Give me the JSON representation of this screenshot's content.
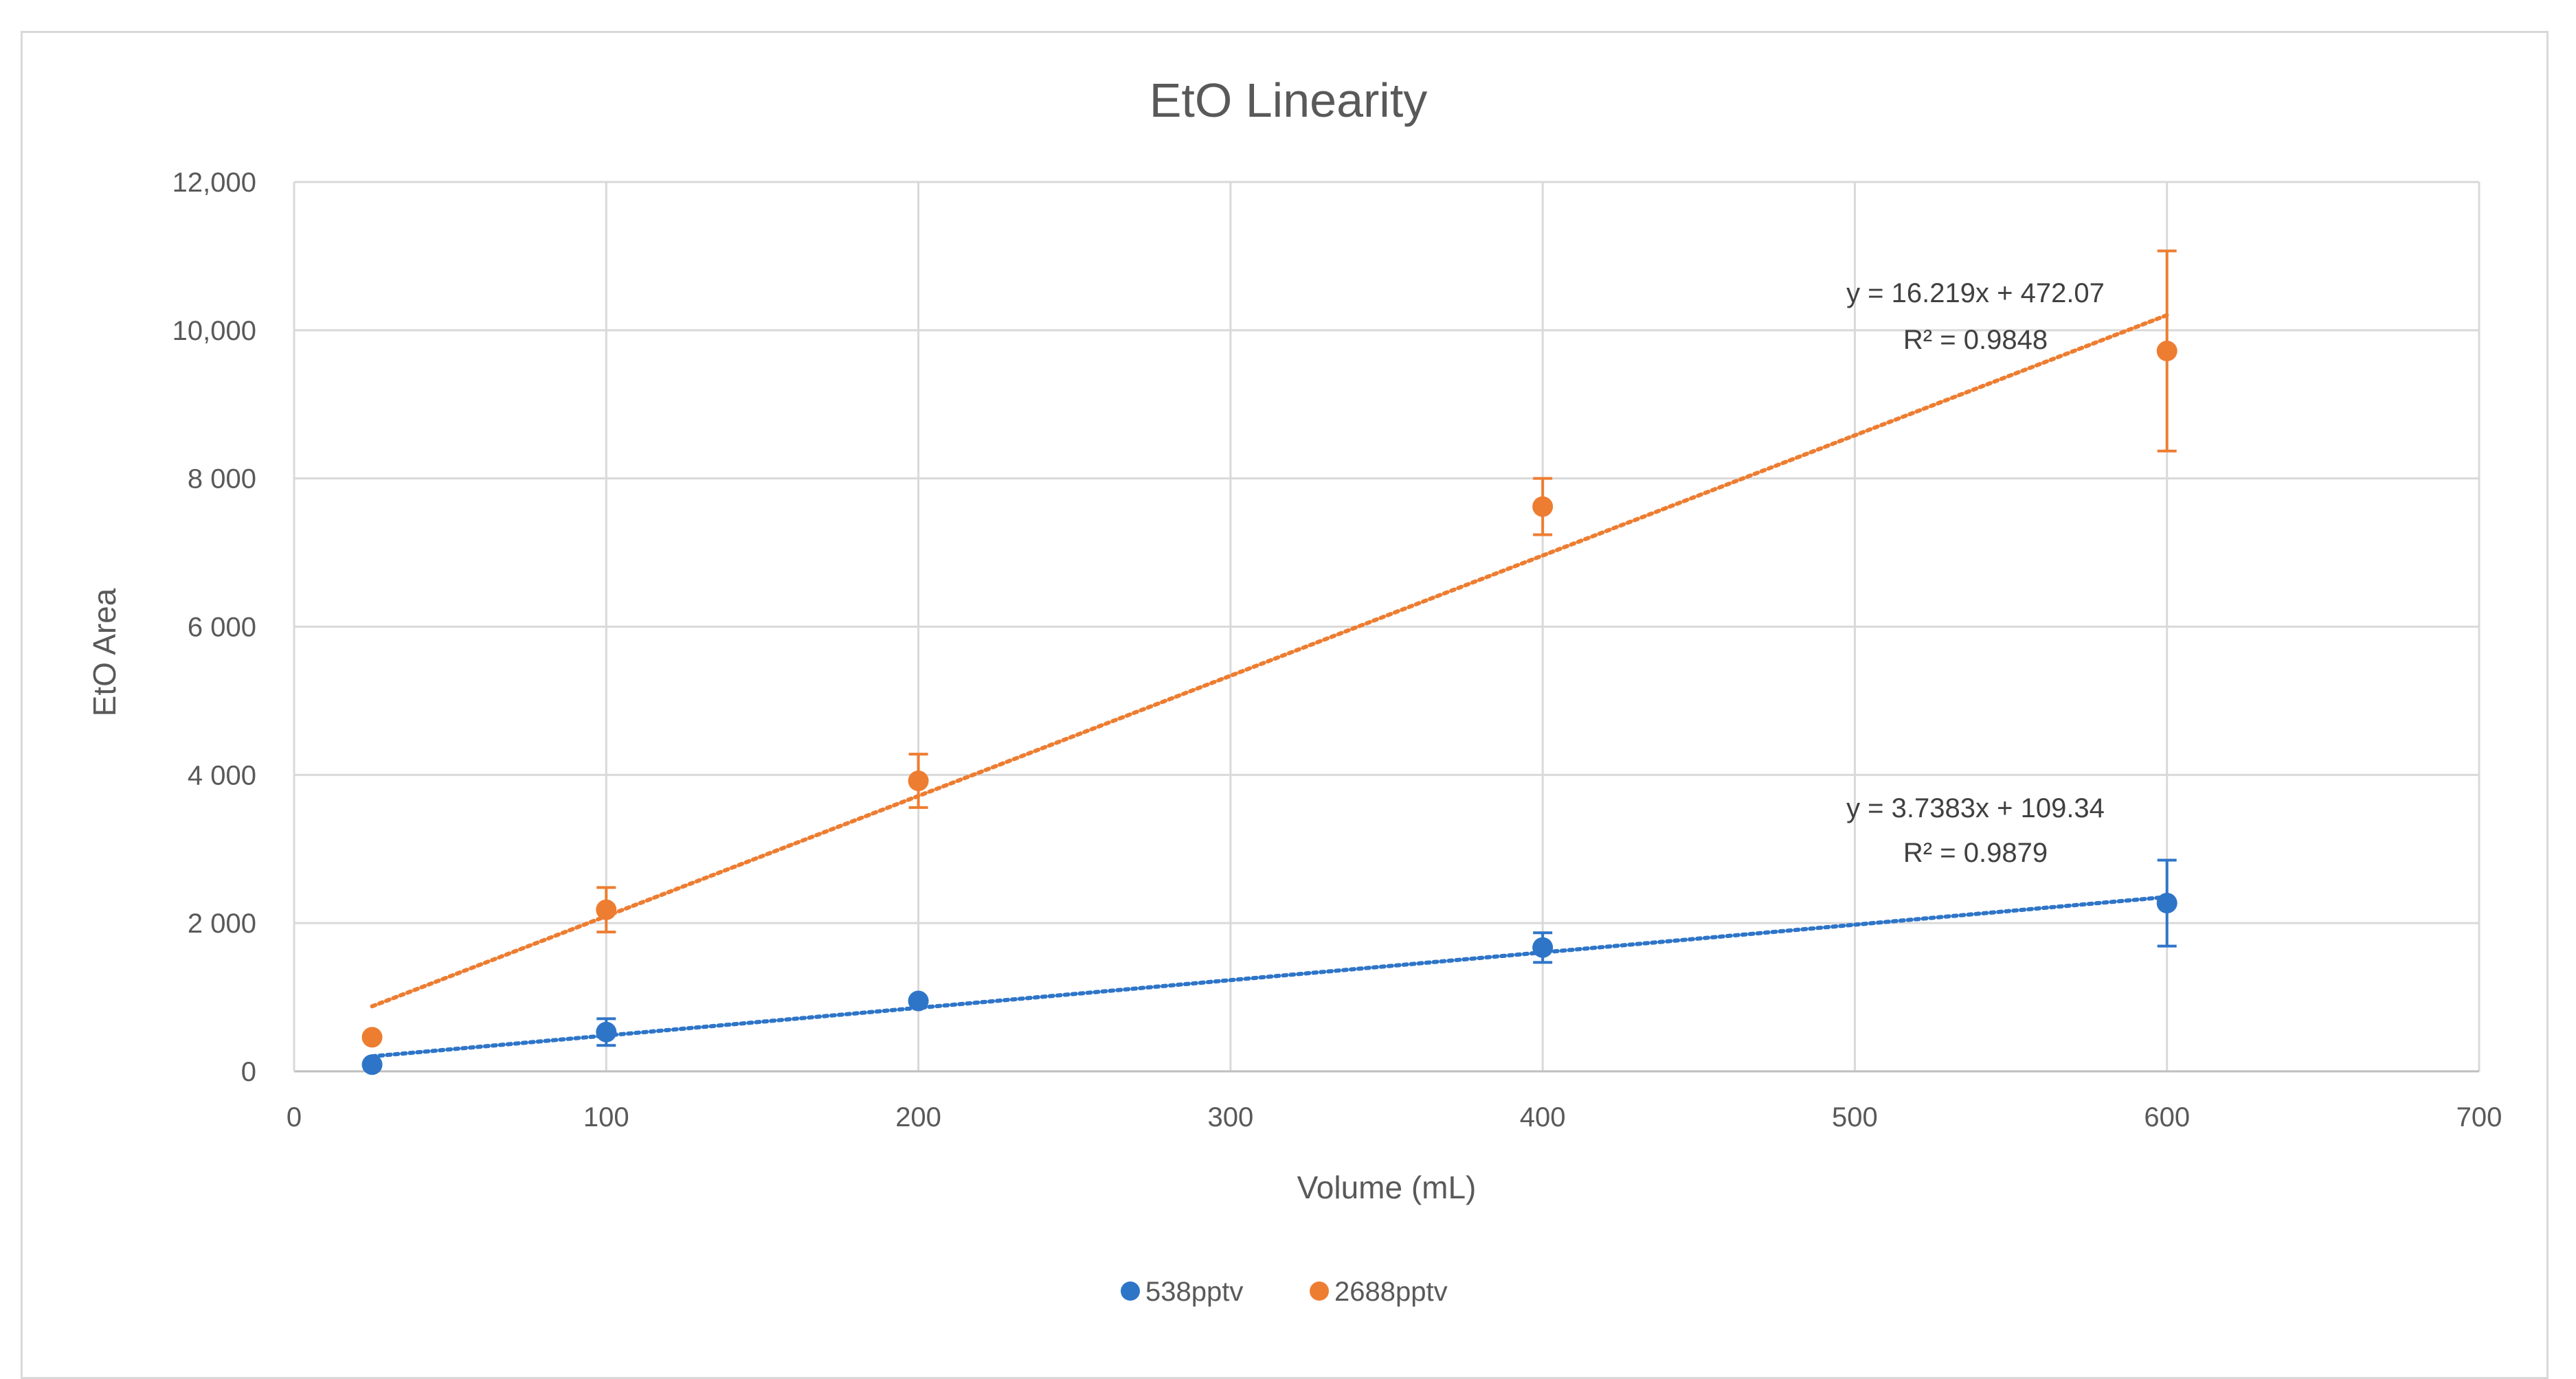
{
  "chart_data": {
    "type": "scatter",
    "title": "EtO Linearity",
    "xlabel": "Volume (mL)",
    "ylabel": "EtO Area",
    "xlim": [
      0,
      700
    ],
    "ylim": [
      0,
      12000
    ],
    "x_ticks": [
      0,
      100,
      200,
      300,
      400,
      500,
      600,
      700
    ],
    "x_tick_labels": [
      "0",
      "100",
      "200",
      "300",
      "400",
      "500",
      "600",
      "700"
    ],
    "y_ticks": [
      0,
      2000,
      4000,
      6000,
      8000,
      10000,
      12000
    ],
    "y_tick_labels": [
      "0",
      "2 000",
      "4 000",
      "6 000",
      "8 000",
      "10,000",
      "12,000"
    ],
    "grid": true,
    "legend_position": "bottom",
    "series": [
      {
        "name": "538pptv",
        "color": "#2e75c8",
        "x": [
          25,
          100,
          200,
          400,
          600
        ],
        "y": [
          90,
          530,
          950,
          1670,
          2270
        ],
        "err": [
          0,
          180,
          0,
          200,
          580
        ],
        "trendline": {
          "slope": 3.7383,
          "intercept": 109.34,
          "x_range": [
            25,
            600
          ]
        },
        "equation": "y = 3.7383x + 109.34",
        "r2": "R² = 0.9879"
      },
      {
        "name": "2688pptv",
        "color": "#ed7d31",
        "x": [
          25,
          100,
          200,
          400,
          600
        ],
        "y": [
          460,
          2180,
          3920,
          7620,
          9720
        ],
        "err": [
          0,
          300,
          360,
          380,
          1350
        ],
        "trendline": {
          "slope": 16.219,
          "intercept": 472.07,
          "x_range": [
            25,
            600
          ]
        },
        "equation": "y = 16.219x + 472.07",
        "r2": "R² = 0.9848"
      }
    ]
  }
}
